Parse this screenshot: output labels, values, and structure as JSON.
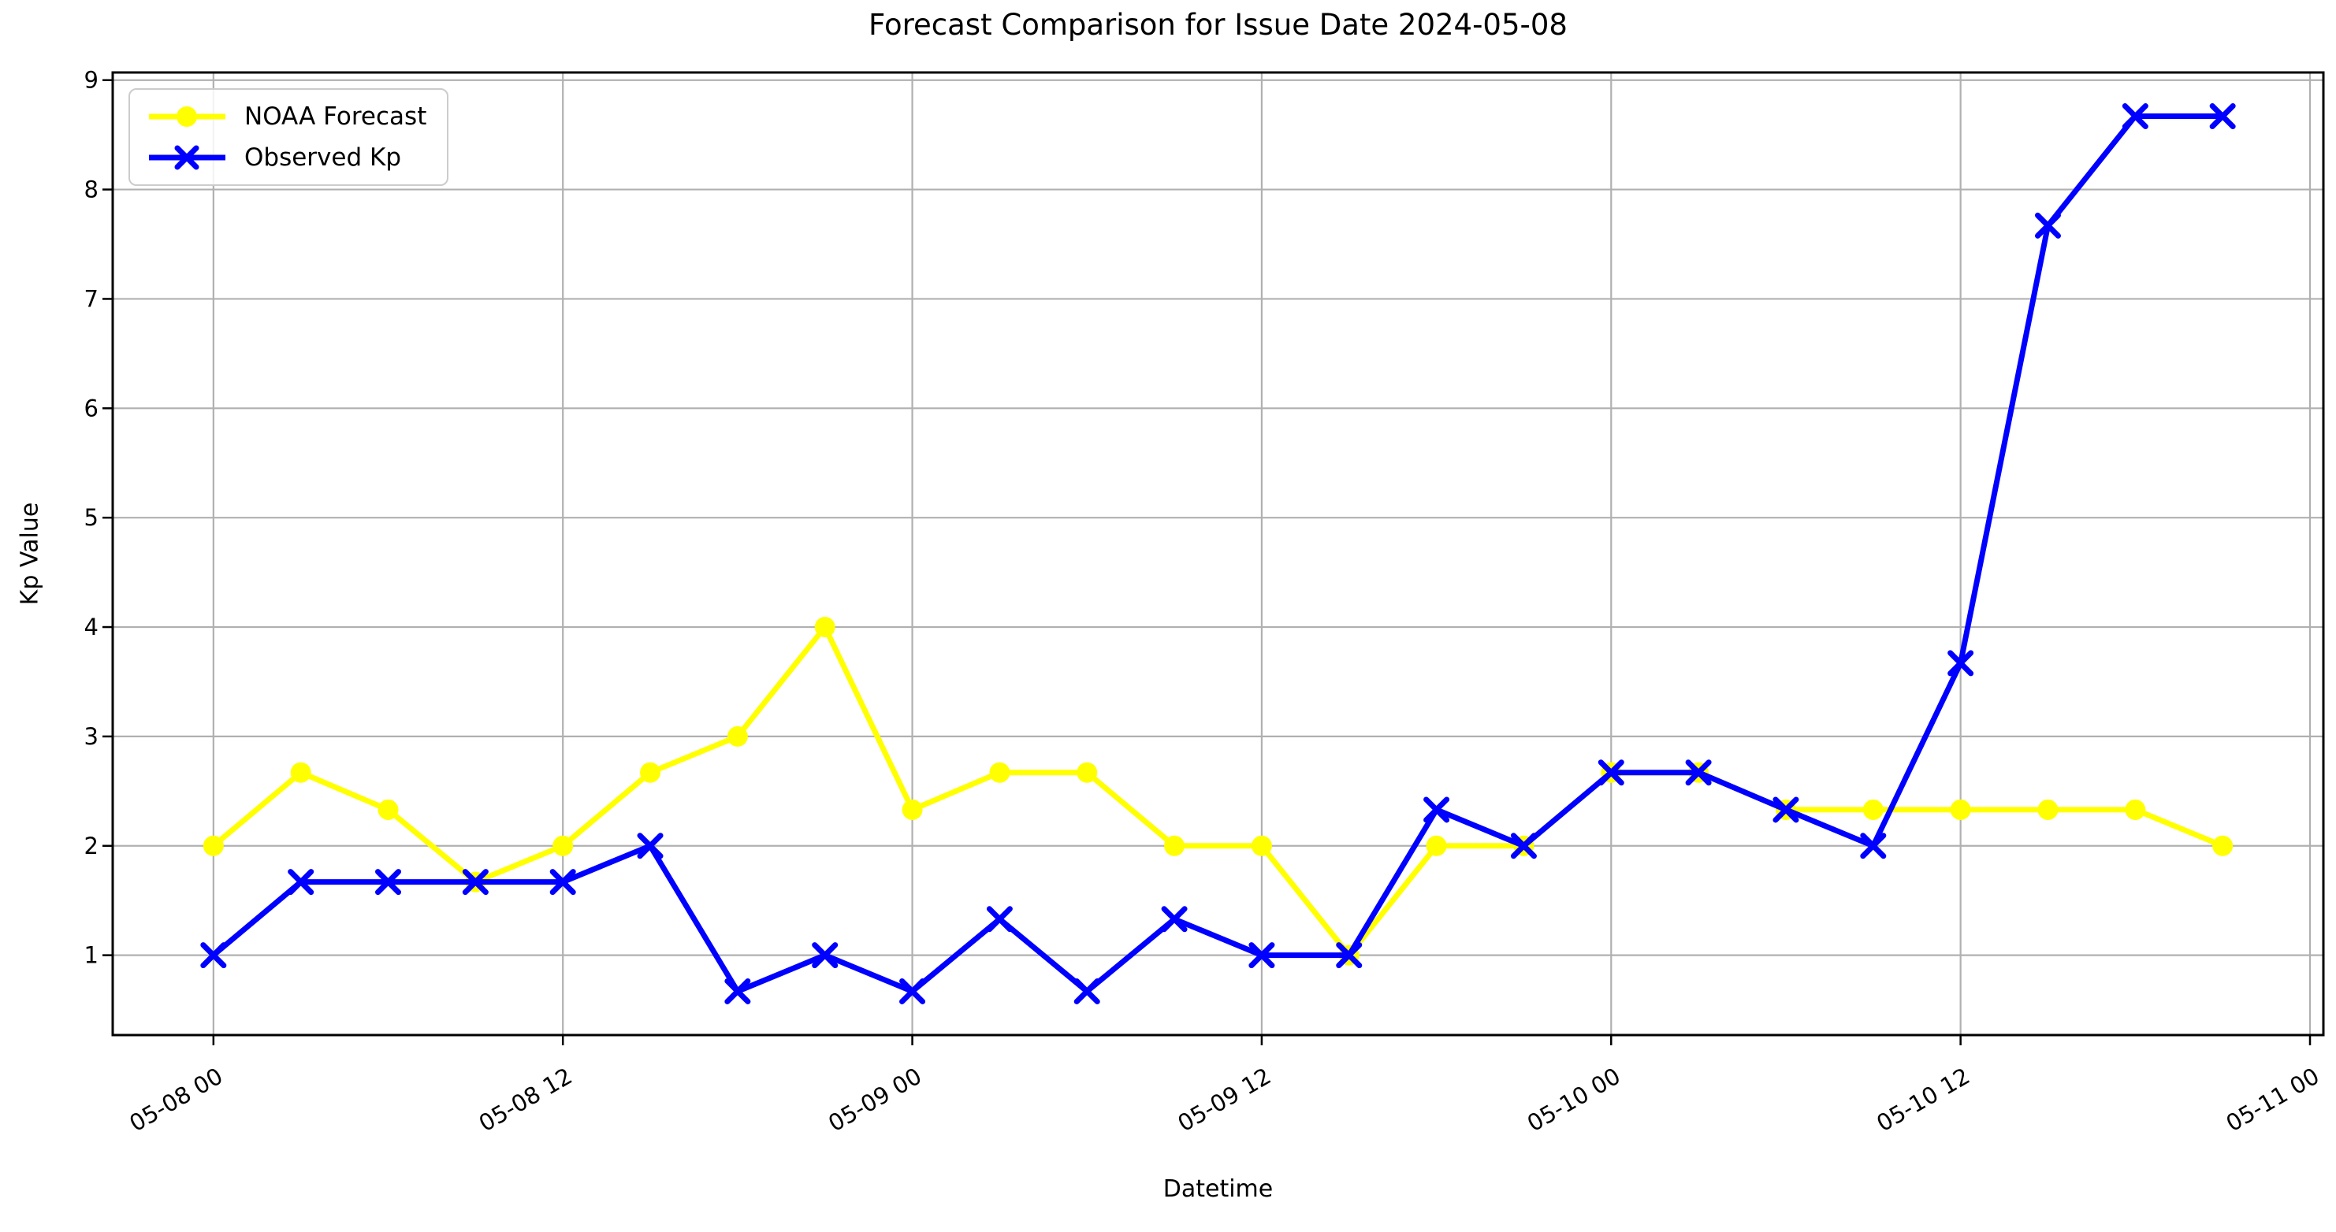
{
  "chart_data": {
    "type": "line",
    "title": "Forecast Comparison for Issue Date 2024-05-08",
    "xlabel": "Datetime",
    "ylabel": "Kp Value",
    "grid": true,
    "legend_position": "upper left",
    "x_tick_labels": [
      "05-08 00",
      "05-08 12",
      "05-09 00",
      "05-09 12",
      "05-10 00",
      "05-10 12",
      "05-11 00"
    ],
    "x_tick_hours": [
      0,
      12,
      24,
      36,
      48,
      60,
      72
    ],
    "y_ticks": [
      1,
      2,
      3,
      4,
      5,
      6,
      7,
      8,
      9
    ],
    "xlim_hours": [
      -3.46,
      72.46
    ],
    "ylim": [
      0.27,
      9.07
    ],
    "x_hours": [
      0,
      3,
      6,
      9,
      12,
      15,
      18,
      21,
      24,
      27,
      30,
      33,
      36,
      39,
      42,
      45,
      48,
      51,
      54,
      57,
      60,
      63,
      66,
      69
    ],
    "series": [
      {
        "name": "NOAA Forecast",
        "color": "#ffff00",
        "marker": "circle",
        "values": [
          2,
          2.67,
          2.33,
          1.67,
          2,
          2.67,
          3,
          4,
          2.33,
          2.67,
          2.67,
          2,
          2,
          1,
          2,
          2,
          2.67,
          2.67,
          2.33,
          2.33,
          2.33,
          2.33,
          2.33,
          2
        ]
      },
      {
        "name": "Observed Kp",
        "color": "#0000ff",
        "marker": "x",
        "values": [
          1,
          1.67,
          1.67,
          1.67,
          1.67,
          2,
          0.67,
          1,
          0.67,
          1.33,
          0.67,
          1.33,
          1,
          1,
          2.33,
          2,
          2.67,
          2.67,
          2.33,
          2,
          3.67,
          7.67,
          8.67,
          8.67
        ]
      }
    ],
    "grid_color": "#b0b0b0",
    "axis_color": "#000000",
    "background_color": "#ffffff"
  }
}
